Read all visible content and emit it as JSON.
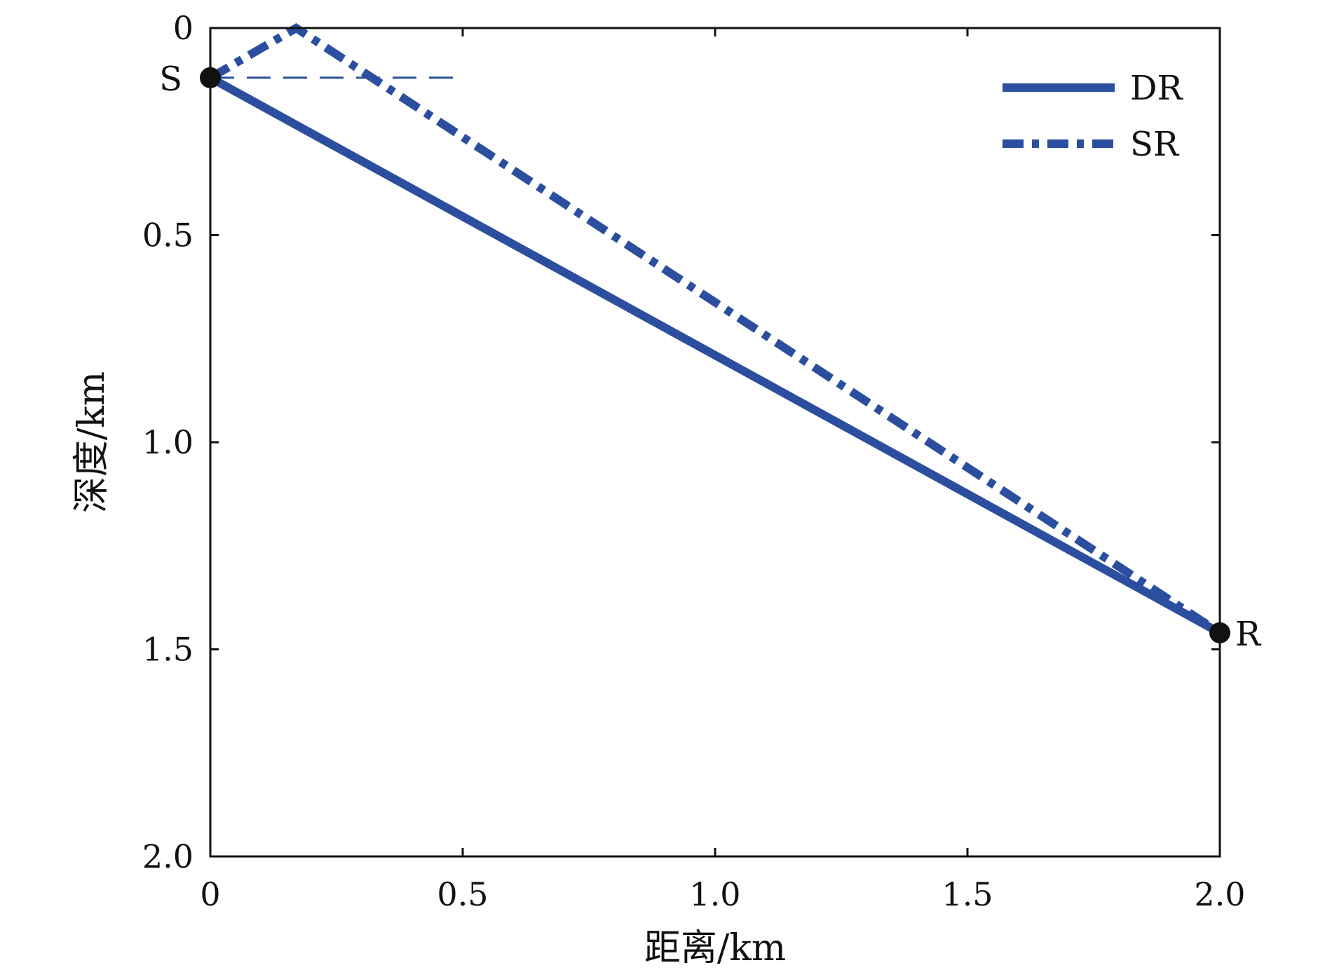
{
  "chart_data": {
    "type": "line",
    "title": "",
    "xlabel": "距离/km",
    "ylabel": "深度/km",
    "xlim": [
      0,
      2.0
    ],
    "ylim": [
      0,
      2.0
    ],
    "y_inverted": true,
    "grid": false,
    "legend": "top-right",
    "xticks": [
      0,
      0.5,
      1.0,
      1.5,
      2.0
    ],
    "xtick_labels": [
      "0",
      "0.5",
      "1.0",
      "1.5",
      "2.0"
    ],
    "yticks": [
      0,
      0.5,
      1.0,
      1.5,
      2.0
    ],
    "ytick_labels": [
      "0",
      "0.5",
      "1.0",
      "1.5",
      "2.0"
    ],
    "series": [
      {
        "name": "DR",
        "style": "solid",
        "color": "#2b4f9e",
        "x": [
          0,
          2.0
        ],
        "y": [
          0.12,
          1.46
        ]
      },
      {
        "name": "SR",
        "style": "dash-dot",
        "color": "#2b4f9e",
        "x": [
          0,
          0.17,
          2.0
        ],
        "y": [
          0.12,
          0,
          1.46
        ]
      }
    ],
    "reference_line": {
      "style": "dashed",
      "color": "#2b4f9e",
      "x": [
        0,
        0.5
      ],
      "y": [
        0.12,
        0.12
      ]
    },
    "points": [
      {
        "label": "S",
        "x": 0,
        "y": 0.12
      },
      {
        "label": "R",
        "x": 2.0,
        "y": 1.46
      }
    ]
  }
}
